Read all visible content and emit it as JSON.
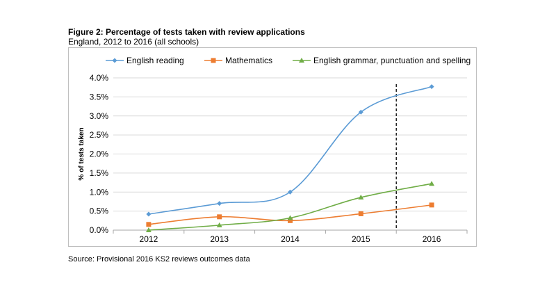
{
  "figure": {
    "title": "Figure 2: Percentage of tests taken with review applications",
    "subtitle": "England, 2012 to 2016 (all schools)",
    "source": "Source: Provisional 2016 KS2 reviews outcomes data"
  },
  "chart_data": {
    "type": "line",
    "title": "Figure 2: Percentage of tests taken with review applications",
    "subtitle": "England, 2012 to 2016 (all schools)",
    "xlabel": "",
    "ylabel": "% of tests taken",
    "categories": [
      "2012",
      "2013",
      "2014",
      "2015",
      "2016"
    ],
    "ylim": [
      0,
      4.0
    ],
    "yticks": [
      "0.0%",
      "0.5%",
      "1.0%",
      "1.5%",
      "2.0%",
      "2.5%",
      "3.0%",
      "3.5%",
      "4.0%"
    ],
    "grid": "horizontal",
    "legend_position": "top",
    "vertical_marker": {
      "between": [
        "2015",
        "2016"
      ],
      "style": "dashed"
    },
    "series": [
      {
        "name": "English reading",
        "marker": "diamond",
        "color": "#5b9bd5",
        "values": [
          0.42,
          0.7,
          1.0,
          3.1,
          3.77
        ]
      },
      {
        "name": "Mathematics",
        "marker": "square",
        "color": "#ed7d31",
        "values": [
          0.15,
          0.35,
          0.25,
          0.43,
          0.66
        ]
      },
      {
        "name": "English grammar, punctuation and spelling",
        "marker": "triangle",
        "color": "#70ad47",
        "values": [
          0.0,
          0.13,
          0.32,
          0.86,
          1.22
        ]
      }
    ]
  }
}
